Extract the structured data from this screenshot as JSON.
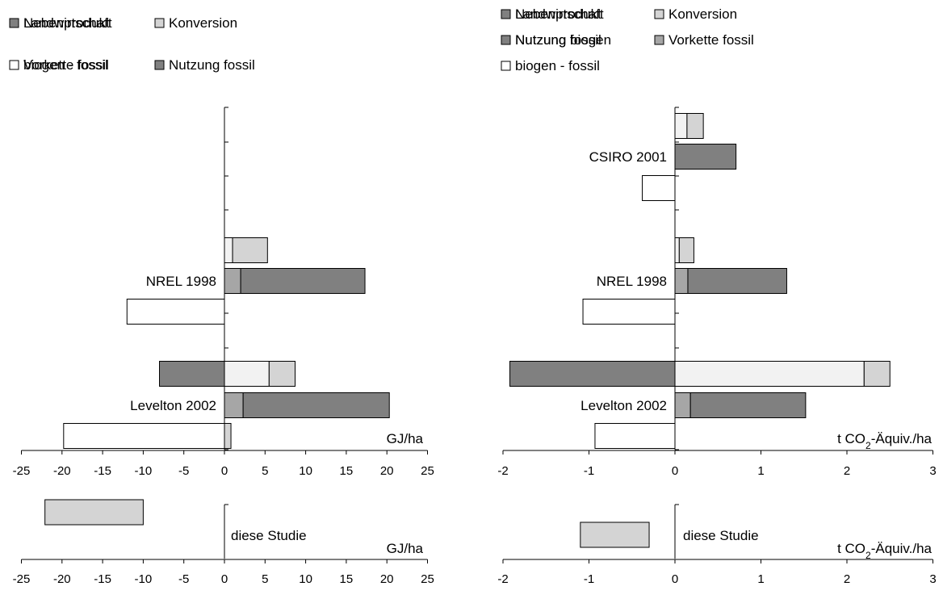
{
  "colors": {
    "Landwirtschaft": "#f2f2f2",
    "Konversion": "#d4d4d4",
    "Nebenprodukt": "#808080",
    "Nutzung biogen": "#b8b8b8",
    "Vorkette fossil": "#a6a6a6",
    "Nutzung fossil": "#808080",
    "biogen - fossil": "#ffffff",
    "diese Studie": "#d4d4d4"
  },
  "chart_data": [
    {
      "type": "bar",
      "orientation": "horizontal",
      "stacked": true,
      "unit_label": "GJ/ha",
      "xlim": [
        -25,
        25
      ],
      "xticks": [
        "-25",
        "-20",
        "-15",
        "-10",
        "-5",
        "0",
        "5",
        "10",
        "15",
        "20",
        "25"
      ],
      "legend": [
        "Landwirtschaft",
        "Konversion",
        "Nebenprodukt",
        "Vorkette fossil",
        "Nutzung fossil",
        "biogen - fossil"
      ],
      "groups": [
        {
          "label": "NREL 1998",
          "rows": [
            [
              {
                "series": "Landwirtschaft",
                "value": 1
              },
              {
                "series": "Konversion",
                "value": 4.3
              }
            ],
            [
              {
                "series": "Vorkette fossil",
                "value": 2
              },
              {
                "series": "Nutzung fossil",
                "value": 15.3
              }
            ],
            [
              {
                "series": "biogen - fossil",
                "value": -12
              }
            ]
          ]
        },
        {
          "label": "Levelton 2002",
          "rows": [
            [
              {
                "series": "Landwirtschaft",
                "value": 5.5
              },
              {
                "series": "Konversion",
                "value": 3.2
              },
              {
                "series": "Nebenprodukt",
                "value": -8
              }
            ],
            [
              {
                "series": "Vorkette fossil",
                "value": 2.3
              },
              {
                "series": "Nutzung fossil",
                "value": 18
              }
            ],
            [
              {
                "series": "biogen - fossil",
                "value": -19.8
              },
              {
                "series": "Konversion",
                "value": 0.8
              }
            ]
          ]
        }
      ]
    },
    {
      "type": "bar",
      "orientation": "horizontal",
      "stacked": true,
      "unit_label": "t CO2-Äquiv./ha",
      "xlim": [
        -2,
        3
      ],
      "xticks": [
        "-2",
        "-1",
        "0",
        "1",
        "2",
        "3"
      ],
      "legend": [
        "Landwirtschaft",
        "Konversion",
        "Nebenprodukt",
        "Nutzung biogen",
        "Vorkette fossil",
        "Nutzung fossil",
        "biogen - fossil"
      ],
      "groups": [
        {
          "label": "CSIRO 2001",
          "rows": [
            [
              {
                "series": "Landwirtschaft",
                "value": 0.14
              },
              {
                "series": "Konversion",
                "value": 0.19
              }
            ],
            [
              {
                "series": "Nutzung fossil",
                "value": 0.71
              }
            ],
            [
              {
                "series": "biogen - fossil",
                "value": -0.38
              }
            ]
          ]
        },
        {
          "label": "NREL 1998",
          "rows": [
            [
              {
                "series": "Landwirtschaft",
                "value": 0.05
              },
              {
                "series": "Konversion",
                "value": 0.17
              }
            ],
            [
              {
                "series": "Vorkette fossil",
                "value": 0.15
              },
              {
                "series": "Nutzung fossil",
                "value": 1.15
              }
            ],
            [
              {
                "series": "biogen - fossil",
                "value": -1.07
              }
            ]
          ]
        },
        {
          "label": "Levelton 2002",
          "rows": [
            [
              {
                "series": "Landwirtschaft",
                "value": 2.2
              },
              {
                "series": "Konversion",
                "value": 0.3
              },
              {
                "series": "Nebenprodukt",
                "value": -1.92
              }
            ],
            [
              {
                "series": "Vorkette fossil",
                "value": 0.18
              },
              {
                "series": "Nutzung fossil",
                "value": 1.34
              }
            ],
            [
              {
                "series": "biogen - fossil",
                "value": -0.93
              }
            ]
          ]
        }
      ]
    },
    {
      "type": "bar",
      "orientation": "horizontal",
      "unit_label": "GJ/ha",
      "xlim": [
        -25,
        25
      ],
      "xticks": [
        "-25",
        "-20",
        "-15",
        "-10",
        "-5",
        "0",
        "5",
        "10",
        "15",
        "20",
        "25"
      ],
      "label": "diese Studie",
      "range": [
        -22.1,
        -10
      ]
    },
    {
      "type": "bar",
      "orientation": "horizontal",
      "unit_label": "t CO2-Äquiv./ha",
      "xlim": [
        -2,
        3
      ],
      "xticks": [
        "-2",
        "-1",
        "0",
        "1",
        "2",
        "3"
      ],
      "label": "diese Studie",
      "range": [
        -1.1,
        -0.3
      ]
    }
  ]
}
